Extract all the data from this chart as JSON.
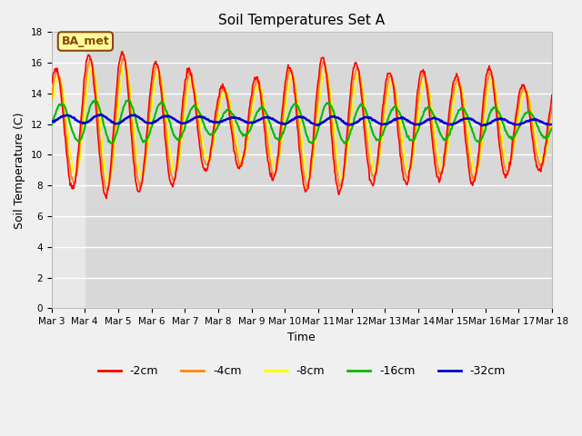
{
  "title": "Soil Temperatures Set A",
  "xlabel": "Time",
  "ylabel": "Soil Temperature (C)",
  "ylim": [
    0,
    18
  ],
  "yticks": [
    0,
    2,
    4,
    6,
    8,
    10,
    12,
    14,
    16,
    18
  ],
  "x_tick_labels": [
    "Mar 3",
    "Mar 4",
    "Mar 5",
    "Mar 6",
    "Mar 7",
    "Mar 8",
    "Mar 9",
    "Mar 10",
    "Mar 11",
    "Mar 12",
    "Mar 13",
    "Mar 14",
    "Mar 15",
    "Mar 16",
    "Mar 17",
    "Mar 18"
  ],
  "annotation_text": "BA_met",
  "annotation_bg": "#ffff99",
  "annotation_border": "#8B4513",
  "line_colors": {
    "-2cm": "#ff0000",
    "-4cm": "#ff8800",
    "-8cm": "#ffff00",
    "-16cm": "#00bb00",
    "-32cm": "#0000cc"
  },
  "line_widths": {
    "-2cm": 1.2,
    "-4cm": 1.2,
    "-8cm": 1.2,
    "-16cm": 1.5,
    "-32cm": 1.8
  },
  "plot_bg_upper": "#d8d8d8",
  "plot_bg_lower": "#e8e8e8",
  "fig_bg": "#f0f0f0",
  "grid_color": "#ffffff",
  "legend_labels": [
    "-2cm",
    "-4cm",
    "-8cm",
    "-16cm",
    "-32cm"
  ],
  "data_lower_bound": 6.0,
  "n_days": 15,
  "n_pts_per_day": 48
}
